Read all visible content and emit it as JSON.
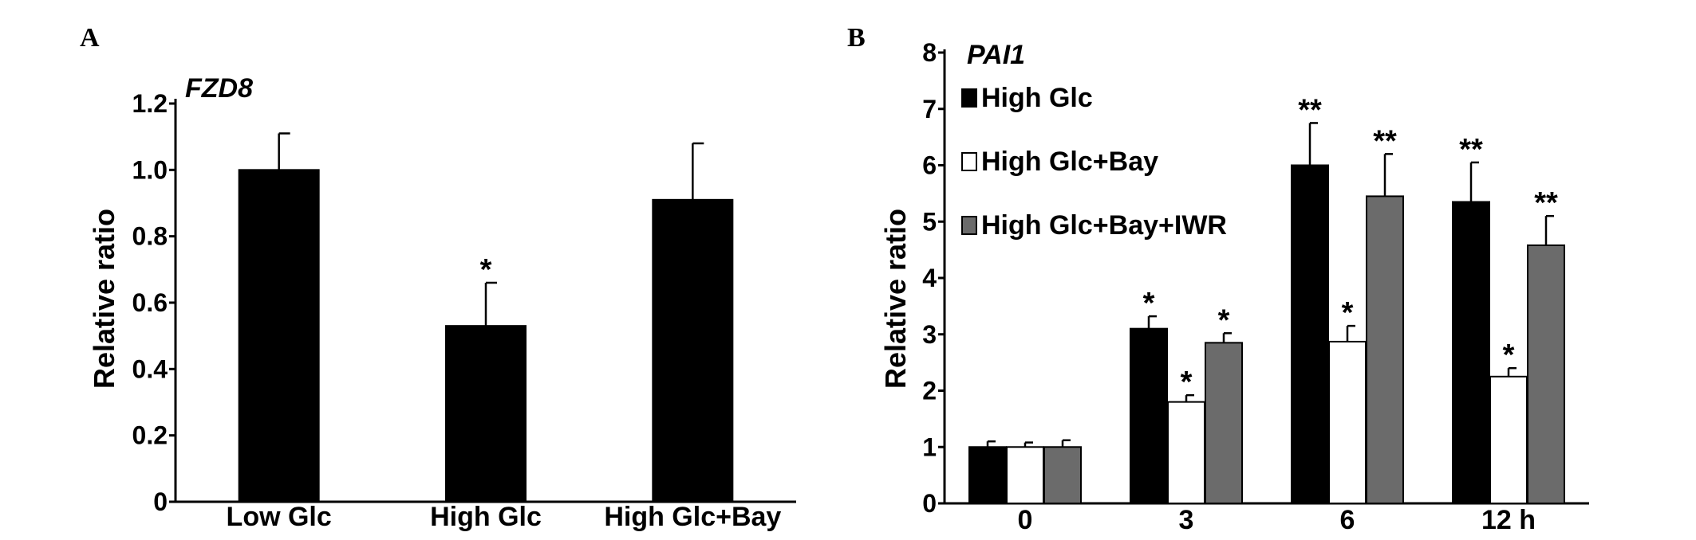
{
  "chart_data": [
    {
      "panel": "A",
      "type": "bar",
      "title": "FZD8",
      "ylabel": "Relative ratio",
      "xlabel": "",
      "ylim": [
        0,
        1.2
      ],
      "yticks": [
        "0",
        "0.2",
        "0.4",
        "0.6",
        "0.8",
        "1.0",
        "1.2"
      ],
      "yticks_values": [
        0,
        0.2,
        0.4,
        0.6,
        0.8,
        1.0,
        1.2
      ],
      "categories": [
        "Low Glc",
        "High Glc",
        "High Glc+Bay"
      ],
      "values": [
        1.0,
        0.53,
        0.91
      ],
      "errors": [
        0.11,
        0.13,
        0.17
      ],
      "significance": [
        "",
        "*",
        ""
      ],
      "colors": [
        "#000000",
        "#000000",
        "#000000"
      ],
      "grid": false
    },
    {
      "panel": "B",
      "type": "bar",
      "title": "PAI1",
      "ylabel": "Relative ratio",
      "xlabel": "",
      "ylim": [
        0,
        8
      ],
      "yticks": [
        "0",
        "1",
        "2",
        "3",
        "4",
        "5",
        "6",
        "7",
        "8"
      ],
      "yticks_values": [
        0,
        1,
        2,
        3,
        4,
        5,
        6,
        7,
        8
      ],
      "categories": [
        "0",
        "3",
        "6",
        "12 h"
      ],
      "series": [
        {
          "name": "High Glc",
          "color": "#000000",
          "values": [
            1.0,
            3.1,
            6.0,
            5.35
          ],
          "errors": [
            0.1,
            0.22,
            0.75,
            0.7
          ],
          "significance": [
            "",
            "*",
            "**",
            "**"
          ]
        },
        {
          "name": "High Glc+Bay",
          "color": "#ffffff",
          "values": [
            1.0,
            1.8,
            2.87,
            2.25
          ],
          "errors": [
            0.08,
            0.12,
            0.28,
            0.15
          ],
          "significance": [
            "",
            "*",
            "*",
            "*"
          ]
        },
        {
          "name": "High Glc+Bay+IWR",
          "color": "#6b6b6b",
          "values": [
            1.0,
            2.85,
            5.45,
            4.58
          ],
          "errors": [
            0.12,
            0.17,
            0.75,
            0.52
          ],
          "significance": [
            "",
            "*",
            "**",
            "**"
          ]
        }
      ],
      "legend_position": "top-left",
      "grid": false
    }
  ]
}
